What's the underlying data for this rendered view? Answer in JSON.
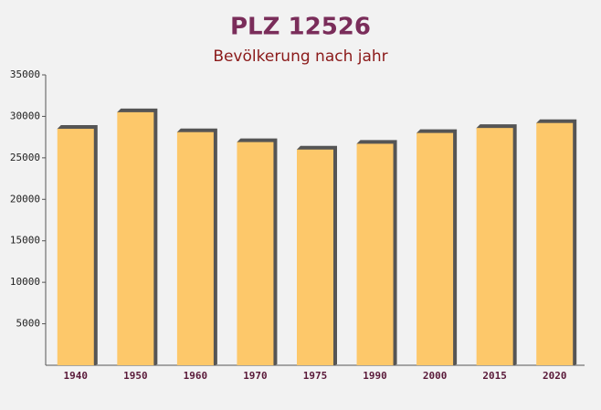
{
  "chart_data": {
    "type": "bar",
    "title": "PLZ 12526",
    "subtitle": "Bevölkerung nach jahr",
    "categories": [
      "1940",
      "1950",
      "1960",
      "1970",
      "1975",
      "1990",
      "2000",
      "2015",
      "2020"
    ],
    "values": [
      28500,
      30500,
      28100,
      26900,
      26000,
      26700,
      28000,
      28600,
      29200
    ],
    "color": "#fdc86a",
    "ylim": [
      0,
      35000
    ],
    "yticks": [
      5000,
      10000,
      15000,
      20000,
      25000,
      30000,
      35000
    ],
    "grid": false
  }
}
